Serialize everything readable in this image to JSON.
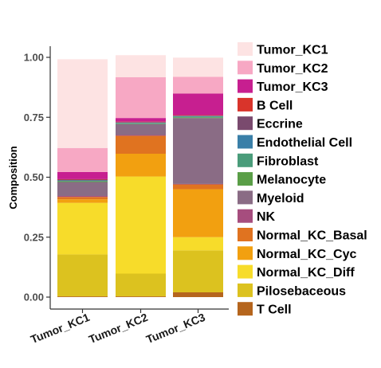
{
  "chart_data": {
    "type": "bar",
    "stacked": true,
    "categories": [
      "Tumor_KC1",
      "Tumor_KC2",
      "Tumor_KC3"
    ],
    "ylabel": "Composition",
    "ylim": [
      0,
      1
    ],
    "yticks": [
      "0.00",
      "0.25",
      "0.50",
      "0.75",
      "1.00"
    ],
    "ytick_values": [
      0,
      0.25,
      0.5,
      0.75,
      1
    ],
    "legend_position": "right",
    "series": [
      {
        "name": "T Cell",
        "color": "#b5651d",
        "values": [
          0.003,
          0.003,
          0.02
        ]
      },
      {
        "name": "Pilosebaceous",
        "color": "#dcc21f",
        "values": [
          0.175,
          0.095,
          0.175
        ]
      },
      {
        "name": "Normal_KC_Diff",
        "color": "#f7dc2a",
        "values": [
          0.215,
          0.405,
          0.055
        ]
      },
      {
        "name": "Normal_KC_Cyc",
        "color": "#f2a010",
        "values": [
          0.015,
          0.095,
          0.2
        ]
      },
      {
        "name": "Normal_KC_Basal",
        "color": "#e07320",
        "values": [
          0.01,
          0.075,
          0.02
        ]
      },
      {
        "name": "NK",
        "color": "#a64d7e",
        "values": [
          0.004,
          0.003,
          0.002
        ]
      },
      {
        "name": "Myeloid",
        "color": "#8a6c85",
        "values": [
          0.058,
          0.045,
          0.275
        ]
      },
      {
        "name": "Melanocyte",
        "color": "#5a9e47",
        "values": [
          0.003,
          0.002,
          0.003
        ]
      },
      {
        "name": "Fibroblast",
        "color": "#4a9c7a",
        "values": [
          0.002,
          0.002,
          0.003
        ]
      },
      {
        "name": "Endothelial Cell",
        "color": "#3a7fa8",
        "values": [
          0.002,
          0.002,
          0.002
        ]
      },
      {
        "name": "Eccrine",
        "color": "#7a4a6e",
        "values": [
          0.003,
          0.003,
          0.002
        ]
      },
      {
        "name": "B Cell",
        "color": "#d9342b",
        "values": [
          0.002,
          0.002,
          0.002
        ]
      },
      {
        "name": "Tumor_KC3",
        "color": "#c71f90",
        "values": [
          0.03,
          0.015,
          0.09
        ]
      },
      {
        "name": "Tumor_KC2",
        "color": "#f7a8c4",
        "values": [
          0.1,
          0.17,
          0.07
        ]
      },
      {
        "name": "Tumor_KC1",
        "color": "#fde3e3",
        "values": [
          0.37,
          0.092,
          0.08
        ]
      }
    ],
    "legend_order": [
      "Tumor_KC1",
      "Tumor_KC2",
      "Tumor_KC3",
      "B Cell",
      "Eccrine",
      "Endothelial Cell",
      "Fibroblast",
      "Melanocyte",
      "Myeloid",
      "NK",
      "Normal_KC_Basal",
      "Normal_KC_Cyc",
      "Normal_KC_Diff",
      "Pilosebaceous",
      "T Cell"
    ]
  }
}
